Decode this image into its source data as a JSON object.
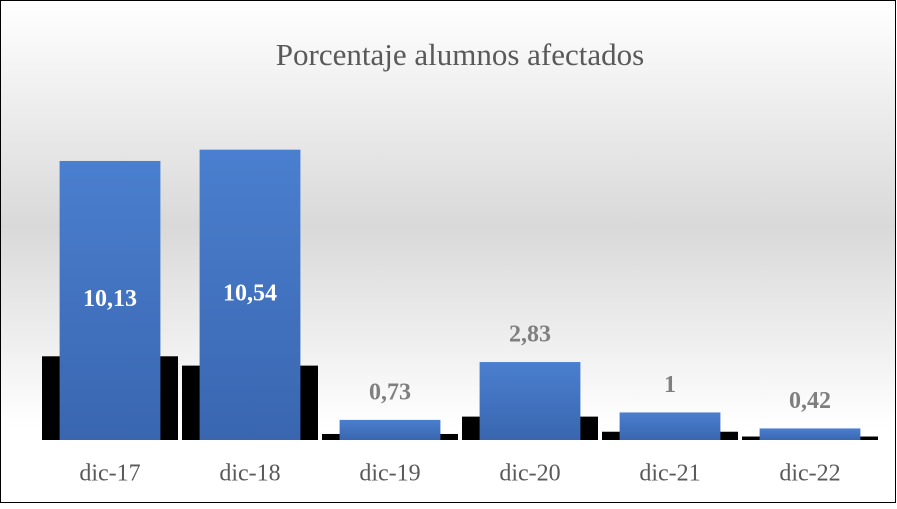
{
  "chart_data": {
    "type": "bar",
    "title": "Porcentaje alumnos afectados",
    "categories": [
      "dic-17",
      "dic-18",
      "dic-19",
      "dic-20",
      "dic-21",
      "dic-22"
    ],
    "values": [
      10.13,
      10.54,
      0.73,
      2.83,
      1,
      0.42
    ],
    "value_labels": [
      "10,13",
      "10,54",
      "0,73",
      "2,83",
      "1",
      "0,42"
    ],
    "color": "#4472c4",
    "ylim": [
      0,
      11
    ]
  }
}
